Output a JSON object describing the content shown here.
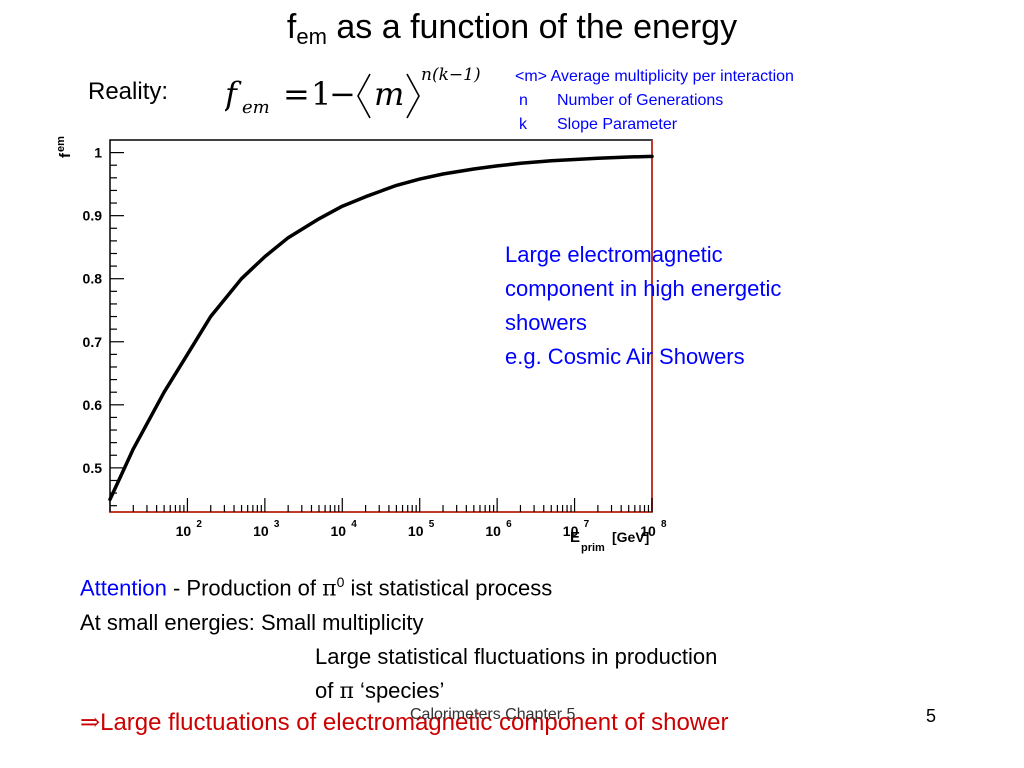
{
  "title": {
    "main": "f",
    "sub": "em",
    "rest": " as a function of the energy"
  },
  "reality_label": "Reality:",
  "formula": {
    "f": "f",
    "sub": "em",
    "equals": "=",
    "one": "1",
    "minus": "−",
    "m": "m",
    "exponent": "n(k−1)"
  },
  "legend": [
    {
      "symbol": "<m>",
      "text": "Average multiplicity per interaction"
    },
    {
      "symbol": "n",
      "text": "Number of Generations"
    },
    {
      "symbol": "k",
      "text": "Slope Parameter"
    }
  ],
  "note": {
    "line1": "Large electromagnetic",
    "line2": "component in high energetic",
    "line3": "showers",
    "line4": "e.g. Cosmic Air Showers"
  },
  "bottom": {
    "attention": "Attention",
    "line1_rest": " - Production of ",
    "pi": "π",
    "zero": "0",
    "line1_end": " ist statistical process",
    "line2": "At small energies: Small multiplicity",
    "line3": "Large statistical fluctuations in production",
    "line4_pre": "of ",
    "line4_end": " ‘species’"
  },
  "conclusion": {
    "arrow": "⇒",
    "text": "Large fluctuations of electromagnetic component of shower"
  },
  "footer": "Calorimeters Chapter 5",
  "page_number": "5",
  "colors": {
    "accent_blue": "#0000ff",
    "accent_red": "#cc0000",
    "frame_red": "#c0392b"
  },
  "chart_data": {
    "type": "line",
    "ylabel_main": "f",
    "ylabel_sub": "em",
    "xlabel_main": "E",
    "xlabel_sub": "prim",
    "xlabel_unit": "[GeV]",
    "x_scale": "log",
    "xlim": [
      10,
      100000000
    ],
    "ylim": [
      0.43,
      1.02
    ],
    "x_ticks": [
      {
        "value": 100,
        "base": "10",
        "exp": "2"
      },
      {
        "value": 1000,
        "base": "10",
        "exp": "3"
      },
      {
        "value": 10000,
        "base": "10",
        "exp": "4"
      },
      {
        "value": 100000,
        "base": "10",
        "exp": "5"
      },
      {
        "value": 1000000,
        "base": "10",
        "exp": "6"
      },
      {
        "value": 10000000,
        "base": "10",
        "exp": "7"
      },
      {
        "value": 100000000,
        "base": "10",
        "exp": "8"
      }
    ],
    "y_ticks": [
      "0.5",
      "0.6",
      "0.7",
      "0.8",
      "0.9",
      "1"
    ],
    "series": [
      {
        "x": [
          10,
          20,
          50,
          100,
          200,
          500,
          1000,
          2000,
          5000,
          10000,
          20000,
          50000,
          100000,
          200000,
          500000,
          1000000,
          2000000,
          5000000,
          10000000,
          20000000,
          50000000,
          100000000
        ],
        "y": [
          0.45,
          0.53,
          0.62,
          0.68,
          0.74,
          0.8,
          0.835,
          0.865,
          0.895,
          0.915,
          0.93,
          0.948,
          0.958,
          0.966,
          0.974,
          0.979,
          0.983,
          0.987,
          0.989,
          0.991,
          0.993,
          0.994
        ]
      }
    ]
  }
}
